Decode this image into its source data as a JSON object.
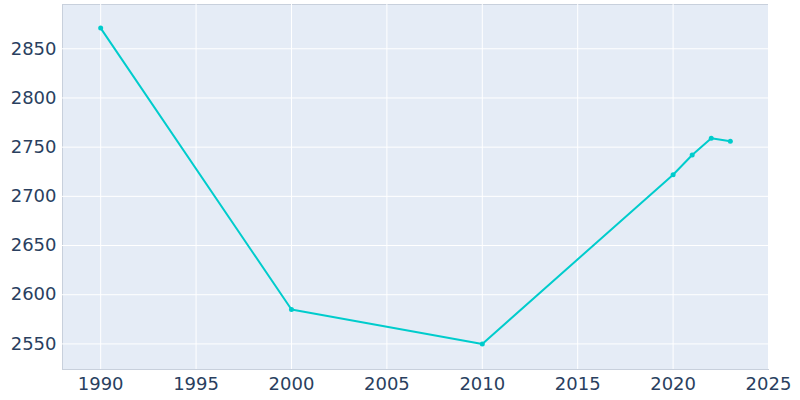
{
  "chart_data": {
    "type": "line",
    "x": [
      1990,
      2000,
      2010,
      2020,
      2021,
      2022,
      2023
    ],
    "values": [
      2871,
      2585,
      2550,
      2722,
      2742,
      2759,
      2756
    ],
    "color": "#00cccc",
    "marker": "circle",
    "xlim": [
      1988,
      2025
    ],
    "xticks": [
      1990,
      1995,
      2000,
      2005,
      2010,
      2015,
      2020,
      2025
    ],
    "ylim": [
      2524,
      2895
    ],
    "yticks": [
      2550,
      2600,
      2650,
      2700,
      2750,
      2800,
      2850
    ],
    "grid": true
  }
}
